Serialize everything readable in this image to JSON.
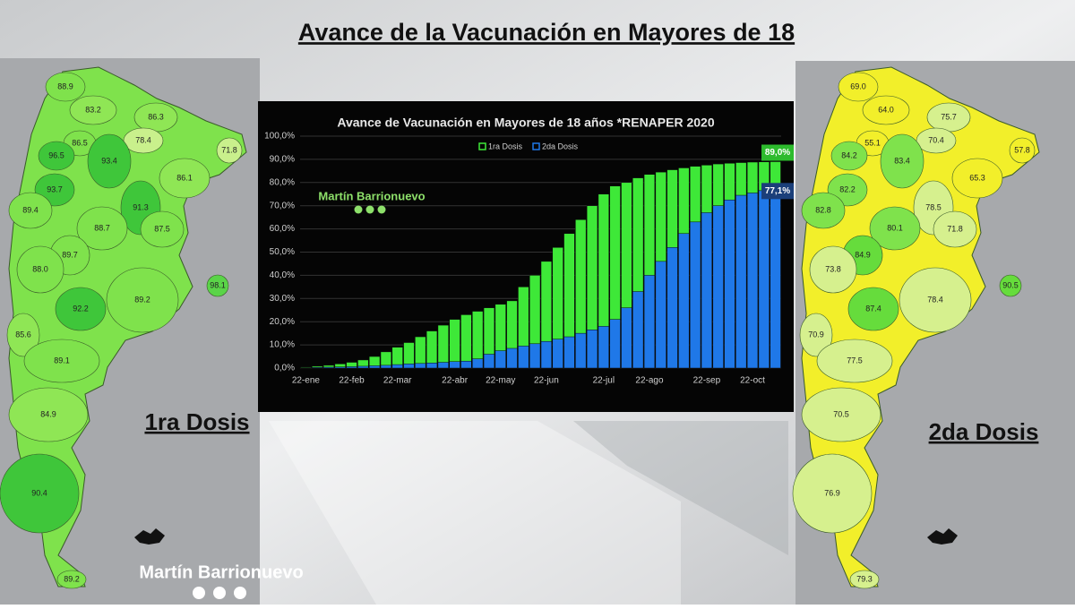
{
  "title": "Avance de la Vacunación en Mayores de 18",
  "brand": "Martín Barrionuevo",
  "chart_data": {
    "type": "bar",
    "title": "Avance de Vacunación en Mayores de 18 años *RENAPER 2020",
    "categories": [
      "22-ene",
      null,
      null,
      null,
      "22-feb",
      null,
      null,
      null,
      "22-mar",
      null,
      null,
      null,
      null,
      "22-abr",
      null,
      null,
      null,
      "22-may",
      null,
      null,
      null,
      "22-jun",
      null,
      null,
      null,
      null,
      "22-jul",
      null,
      null,
      null,
      "22-ago",
      null,
      null,
      null,
      null,
      "22-sep",
      null,
      null,
      null,
      "22-oct",
      null,
      null
    ],
    "series": [
      {
        "name": "1ra Dosis",
        "color": "#3ee838",
        "values": [
          0.5,
          0.8,
          1.2,
          1.8,
          2.5,
          3.5,
          5,
          7,
          9,
          11,
          13.5,
          16,
          18.5,
          21,
          23,
          24.5,
          26,
          27.5,
          29,
          35,
          40,
          46,
          52,
          58,
          64,
          70,
          75,
          78.5,
          80,
          82,
          83.5,
          84.5,
          85.5,
          86.3,
          87,
          87.5,
          88,
          88.3,
          88.6,
          88.8,
          88.9,
          89.0
        ],
        "value_labels": [
          null,
          null,
          null,
          null,
          null,
          null,
          null,
          null,
          null,
          null,
          null,
          null,
          null,
          null,
          null,
          null,
          null,
          null,
          null,
          null,
          null,
          null,
          null,
          null,
          null,
          null,
          null,
          null,
          null,
          null,
          null,
          null,
          null,
          null,
          null,
          null,
          null,
          null,
          null,
          null,
          null,
          "89,0%"
        ]
      },
      {
        "name": "2da Dosis",
        "color": "#1f78e8",
        "values": [
          0.2,
          0.3,
          0.4,
          0.5,
          0.6,
          0.8,
          1,
          1.2,
          1.5,
          1.8,
          2,
          2.2,
          2.5,
          2.8,
          3,
          4,
          6,
          7.5,
          8.5,
          9.5,
          10.5,
          11.5,
          12.5,
          13.5,
          15,
          16.5,
          18,
          21,
          26,
          33,
          40,
          46,
          52,
          58,
          63,
          67,
          70,
          72.5,
          74.5,
          75.5,
          76.5,
          77.1
        ],
        "value_labels": [
          null,
          null,
          null,
          null,
          null,
          null,
          null,
          null,
          null,
          null,
          null,
          null,
          null,
          null,
          null,
          null,
          null,
          null,
          null,
          null,
          null,
          null,
          null,
          null,
          null,
          null,
          null,
          null,
          null,
          null,
          null,
          null,
          null,
          null,
          null,
          null,
          null,
          null,
          null,
          null,
          null,
          "77,1%"
        ]
      }
    ],
    "ylim": [
      0,
      100
    ],
    "yticks": [
      {
        "value": 0,
        "label": "0,0%"
      },
      {
        "value": 10,
        "label": "10,0%"
      },
      {
        "value": 20,
        "label": "20,0%"
      },
      {
        "value": 30,
        "label": "30,0%"
      },
      {
        "value": 40,
        "label": "40,0%"
      },
      {
        "value": 50,
        "label": "50,0%"
      },
      {
        "value": 60,
        "label": "60,0%"
      },
      {
        "value": 70,
        "label": "70,0%"
      },
      {
        "value": 80,
        "label": "80,0%"
      },
      {
        "value": 90,
        "label": "90,0%"
      },
      {
        "value": 100,
        "label": "100,0%"
      }
    ],
    "grid": true,
    "legend": "top"
  },
  "maps": [
    {
      "caption": "1ra Dosis",
      "regions": [
        {
          "label": "88.9",
          "color": "#7fe24c"
        },
        {
          "label": "83.2",
          "color": "#8fe655"
        },
        {
          "label": "86.3",
          "color": "#8fe655"
        },
        {
          "label": "78.4",
          "color": "#c9f08c"
        },
        {
          "label": "71.8",
          "color": "#c9f08c"
        },
        {
          "label": "86.5",
          "color": "#7fe24c"
        },
        {
          "label": "96.5",
          "color": "#3fc63a"
        },
        {
          "label": "93.4",
          "color": "#3fc63a"
        },
        {
          "label": "86.1",
          "color": "#8fe655"
        },
        {
          "label": "93.7",
          "color": "#3fc63a"
        },
        {
          "label": "89.4",
          "color": "#7fe24c"
        },
        {
          "label": "91.3",
          "color": "#3fc63a"
        },
        {
          "label": "88.7",
          "color": "#7fe24c"
        },
        {
          "label": "87.5",
          "color": "#7fe24c"
        },
        {
          "label": "89.7",
          "color": "#7fe24c"
        },
        {
          "label": "88.0",
          "color": "#7fe24c"
        },
        {
          "label": "98.1",
          "color": "#5ad448"
        },
        {
          "label": "89.2",
          "color": "#7fe24c"
        },
        {
          "label": "92.2",
          "color": "#3fc63a"
        },
        {
          "label": "85.6",
          "color": "#8fe655"
        },
        {
          "label": "89.1",
          "color": "#7fe24c"
        },
        {
          "label": "84.9",
          "color": "#8fe655"
        },
        {
          "label": "90.4",
          "color": "#3fc63a"
        },
        {
          "label": "89.2",
          "color": "#7fe24c"
        }
      ]
    },
    {
      "caption": "2da Dosis",
      "regions": [
        {
          "label": "69.0",
          "color": "#f2ef2a"
        },
        {
          "label": "64.0",
          "color": "#f2ef2a"
        },
        {
          "label": "75.7",
          "color": "#d6f08e"
        },
        {
          "label": "70.4",
          "color": "#d6f08e"
        },
        {
          "label": "57.8",
          "color": "#f2ef2a"
        },
        {
          "label": "55.1",
          "color": "#f2ef2a"
        },
        {
          "label": "84.2",
          "color": "#7fe24c"
        },
        {
          "label": "83.4",
          "color": "#7fe24c"
        },
        {
          "label": "65.3",
          "color": "#f2ef2a"
        },
        {
          "label": "82.2",
          "color": "#7fe24c"
        },
        {
          "label": "82.8",
          "color": "#7fe24c"
        },
        {
          "label": "78.5",
          "color": "#d6f08e"
        },
        {
          "label": "80.1",
          "color": "#7fe24c"
        },
        {
          "label": "71.8",
          "color": "#d6f08e"
        },
        {
          "label": "84.9",
          "color": "#66dc3c"
        },
        {
          "label": "73.8",
          "color": "#d6f08e"
        },
        {
          "label": "90.5",
          "color": "#66dc3c"
        },
        {
          "label": "78.4",
          "color": "#d6f08e"
        },
        {
          "label": "87.4",
          "color": "#66dc3c"
        },
        {
          "label": "70.9",
          "color": "#d6f08e"
        },
        {
          "label": "77.5",
          "color": "#d6f08e"
        },
        {
          "label": "70.5",
          "color": "#d6f08e"
        },
        {
          "label": "76.9",
          "color": "#d6f08e"
        },
        {
          "label": "79.3",
          "color": "#d6f08e"
        }
      ]
    }
  ]
}
